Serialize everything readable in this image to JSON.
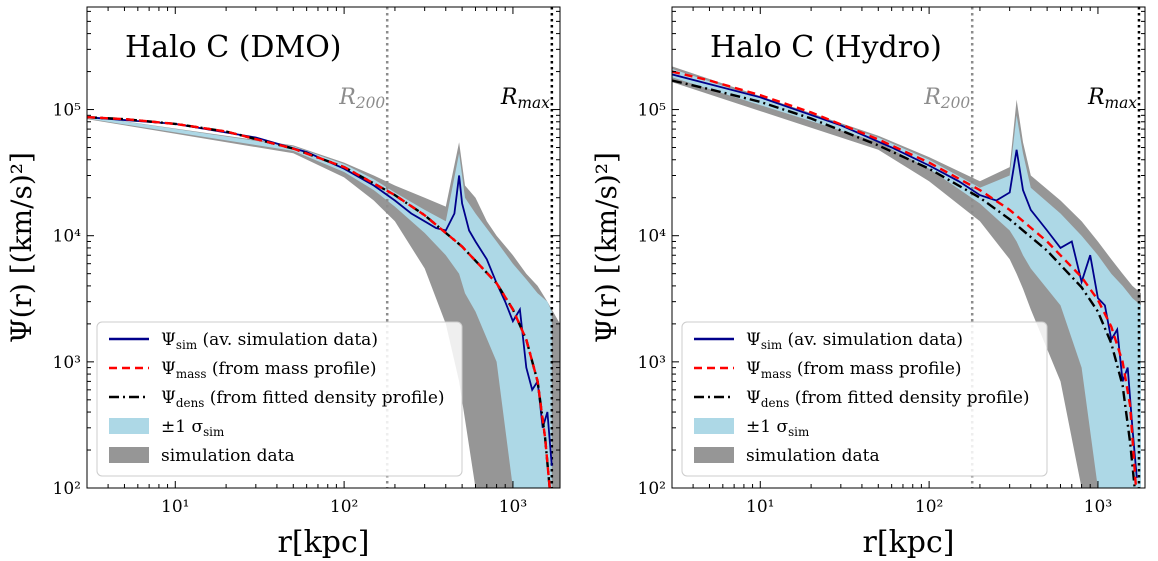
{
  "chart_data": [
    {
      "type": "line",
      "title": "Halo C (DMO)",
      "xlabel": "r[kpc]",
      "ylabel": "Ψ(r) [(km/s)²]",
      "xscale": "log",
      "yscale": "log",
      "xlim": [
        3,
        1900
      ],
      "ylim": [
        100,
        650000
      ],
      "x_ticks": [
        {
          "value": 10,
          "label": "10¹"
        },
        {
          "value": 100,
          "label": "10²"
        },
        {
          "value": 1000,
          "label": "10³"
        }
      ],
      "y_ticks": [
        {
          "value": 100,
          "label": "10²"
        },
        {
          "value": 1000,
          "label": "10³"
        },
        {
          "value": 10000,
          "label": "10⁴"
        },
        {
          "value": 100000,
          "label": "10⁵"
        }
      ],
      "vlines": [
        {
          "label": "R200",
          "x": 180,
          "color": "#8c8c8c",
          "style": "dotted"
        },
        {
          "label": "Rmax",
          "x": 1700,
          "color": "#000000",
          "style": "dotted"
        }
      ],
      "legend_position": "bottom-left",
      "legend": [
        {
          "label": "Ψsim (av. simulation data)",
          "color": "#00008b",
          "style": "solid"
        },
        {
          "label": "Ψmass (from mass profile)",
          "color": "#ff0000",
          "style": "dashed"
        },
        {
          "label": "Ψdens (from fitted density profile)",
          "color": "#000000",
          "style": "dashdot"
        },
        {
          "label": "±1 σsim",
          "color": "#add8e6",
          "style": "fill"
        },
        {
          "label": "simulation data",
          "color": "#969696",
          "style": "fill"
        }
      ],
      "series": [
        {
          "name": "Ψmass",
          "color": "#ff0000",
          "style": "dashed",
          "x": [
            3,
            5,
            10,
            20,
            50,
            100,
            200,
            300,
            500,
            800,
            1000,
            1200,
            1400,
            1550,
            1650
          ],
          "y": [
            87000,
            84000,
            77000,
            67000,
            49000,
            35000,
            21000,
            14500,
            8200,
            4200,
            2600,
            1500,
            700,
            250,
            100
          ]
        },
        {
          "name": "Ψdens",
          "color": "#000000",
          "style": "dashdot",
          "x": [
            3,
            5,
            10,
            20,
            50,
            100,
            200,
            300,
            500,
            800,
            1000,
            1200,
            1400,
            1550,
            1650
          ],
          "y": [
            87000,
            84000,
            77000,
            67000,
            49000,
            35000,
            21000,
            14500,
            8200,
            4200,
            2600,
            1500,
            700,
            250,
            100
          ]
        },
        {
          "name": "Ψsim",
          "color": "#00008b",
          "style": "solid",
          "x": [
            3,
            10,
            30,
            60,
            100,
            150,
            200,
            250,
            300,
            350,
            400,
            450,
            480,
            500,
            550,
            600,
            700,
            800,
            900,
            1000,
            1100,
            1200,
            1300,
            1400,
            1500,
            1600,
            1700
          ],
          "y": [
            87000,
            77000,
            60000,
            46000,
            34000,
            25000,
            19000,
            15000,
            13000,
            11500,
            11000,
            15000,
            30000,
            18000,
            11000,
            9000,
            6500,
            4200,
            3000,
            2100,
            2600,
            900,
            600,
            700,
            300,
            400,
            150
          ]
        },
        {
          "name": "±1 σsim",
          "color": "#add8e6",
          "style": "band",
          "x": [
            3,
            50,
            100,
            150,
            200,
            300,
            400,
            480,
            520,
            600,
            800,
            1000,
            1200,
            1400,
            1600,
            1700
          ],
          "y_upper": [
            89000,
            51000,
            37000,
            28000,
            22000,
            16000,
            13000,
            45000,
            20000,
            15000,
            9000,
            6000,
            4500,
            3500,
            3000,
            2500
          ],
          "y_lower": [
            85000,
            47000,
            32000,
            23000,
            17000,
            10500,
            7000,
            5000,
            3500,
            2500,
            1000,
            100,
            100,
            100,
            100,
            100
          ]
        },
        {
          "name": "simulation data",
          "color": "#969696",
          "style": "band",
          "x": [
            3,
            50,
            100,
            150,
            200,
            300,
            400,
            480,
            520,
            600,
            700,
            800,
            1000,
            1200,
            1400,
            1600,
            1900
          ],
          "y_upper": [
            89000,
            52000,
            38000,
            30000,
            25000,
            20000,
            17000,
            55000,
            25000,
            20000,
            13000,
            10000,
            7000,
            5000,
            4000,
            3000,
            2000
          ],
          "y_lower": [
            84000,
            45000,
            29000,
            19000,
            13000,
            5500,
            2000,
            700,
            350,
            100,
            100,
            100,
            100,
            100,
            100,
            100,
            100
          ]
        }
      ]
    },
    {
      "type": "line",
      "title": "Halo C (Hydro)",
      "xlabel": "r[kpc]",
      "ylabel": "Ψ(r) [(km/s)²]",
      "xscale": "log",
      "yscale": "log",
      "xlim": [
        3,
        1900
      ],
      "ylim": [
        100,
        650000
      ],
      "x_ticks": [
        {
          "value": 10,
          "label": "10¹"
        },
        {
          "value": 100,
          "label": "10²"
        },
        {
          "value": 1000,
          "label": "10³"
        }
      ],
      "y_ticks": [
        {
          "value": 100,
          "label": "10²"
        },
        {
          "value": 1000,
          "label": "10³"
        },
        {
          "value": 10000,
          "label": "10⁴"
        },
        {
          "value": 100000,
          "label": "10⁵"
        }
      ],
      "vlines": [
        {
          "label": "R200",
          "x": 180,
          "color": "#8c8c8c",
          "style": "dotted"
        },
        {
          "label": "Rmax",
          "x": 1750,
          "color": "#000000",
          "style": "dotted"
        }
      ],
      "legend_position": "bottom-left",
      "legend": [
        {
          "label": "Ψsim (av. simulation data)",
          "color": "#00008b",
          "style": "solid"
        },
        {
          "label": "Ψmass (from mass profile)",
          "color": "#ff0000",
          "style": "dashed"
        },
        {
          "label": "Ψdens (from fitted density profile)",
          "color": "#000000",
          "style": "dashdot"
        },
        {
          "label": "±1 σsim",
          "color": "#add8e6",
          "style": "fill"
        },
        {
          "label": "simulation data",
          "color": "#969696",
          "style": "fill"
        }
      ],
      "series": [
        {
          "name": "Ψmass",
          "color": "#ff0000",
          "style": "dashed",
          "x": [
            3,
            5,
            10,
            20,
            50,
            100,
            200,
            300,
            500,
            800,
            1000,
            1200,
            1400,
            1550,
            1680
          ],
          "y": [
            200000,
            170000,
            130000,
            95000,
            58000,
            38000,
            23000,
            16000,
            9000,
            4700,
            3100,
            1900,
            1000,
            450,
            100
          ]
        },
        {
          "name": "Ψdens",
          "color": "#000000",
          "style": "dashdot",
          "x": [
            3,
            5,
            10,
            20,
            50,
            100,
            200,
            300,
            500,
            800,
            1000,
            1200,
            1400,
            1550,
            1650
          ],
          "y": [
            170000,
            145000,
            115000,
            85000,
            52000,
            34000,
            20000,
            13500,
            7600,
            3900,
            2500,
            1400,
            650,
            230,
            100
          ]
        },
        {
          "name": "Ψsim",
          "color": "#00008b",
          "style": "solid",
          "x": [
            3,
            10,
            30,
            60,
            100,
            150,
            200,
            250,
            300,
            330,
            360,
            400,
            500,
            600,
            700,
            800,
            900,
            1000,
            1100,
            1200,
            1300,
            1400,
            1500,
            1600,
            1700
          ],
          "y": [
            190000,
            125000,
            75000,
            50000,
            36000,
            27000,
            21000,
            19000,
            22000,
            48000,
            23000,
            16000,
            11000,
            8000,
            9000,
            4300,
            7000,
            3200,
            2800,
            1500,
            1800,
            700,
            900,
            300,
            120
          ]
        },
        {
          "name": "±1 σsim",
          "color": "#add8e6",
          "style": "band",
          "x": [
            3,
            50,
            100,
            200,
            300,
            330,
            360,
            400,
            600,
            800,
            1000,
            1200,
            1400,
            1600,
            1800
          ],
          "y_upper": [
            210000,
            60000,
            40000,
            24000,
            30000,
            90000,
            45000,
            24000,
            15000,
            10000,
            7000,
            5000,
            4000,
            3200,
            2800
          ],
          "y_lower": [
            180000,
            55000,
            34000,
            18000,
            11000,
            9000,
            7000,
            5500,
            2800,
            900,
            100,
            100,
            100,
            100,
            100
          ]
        },
        {
          "name": "simulation data",
          "color": "#969696",
          "style": "band",
          "x": [
            3,
            50,
            100,
            200,
            300,
            330,
            360,
            400,
            600,
            800,
            1000,
            1200,
            1400,
            1600,
            1800
          ],
          "y_upper": [
            220000,
            62000,
            42000,
            27000,
            35000,
            120000,
            55000,
            30000,
            19000,
            13000,
            9000,
            6500,
            5000,
            4000,
            3500
          ],
          "y_lower": [
            165000,
            48000,
            27000,
            13000,
            6500,
            5000,
            3800,
            2600,
            700,
            100,
            100,
            100,
            100,
            100,
            100
          ]
        }
      ]
    }
  ]
}
